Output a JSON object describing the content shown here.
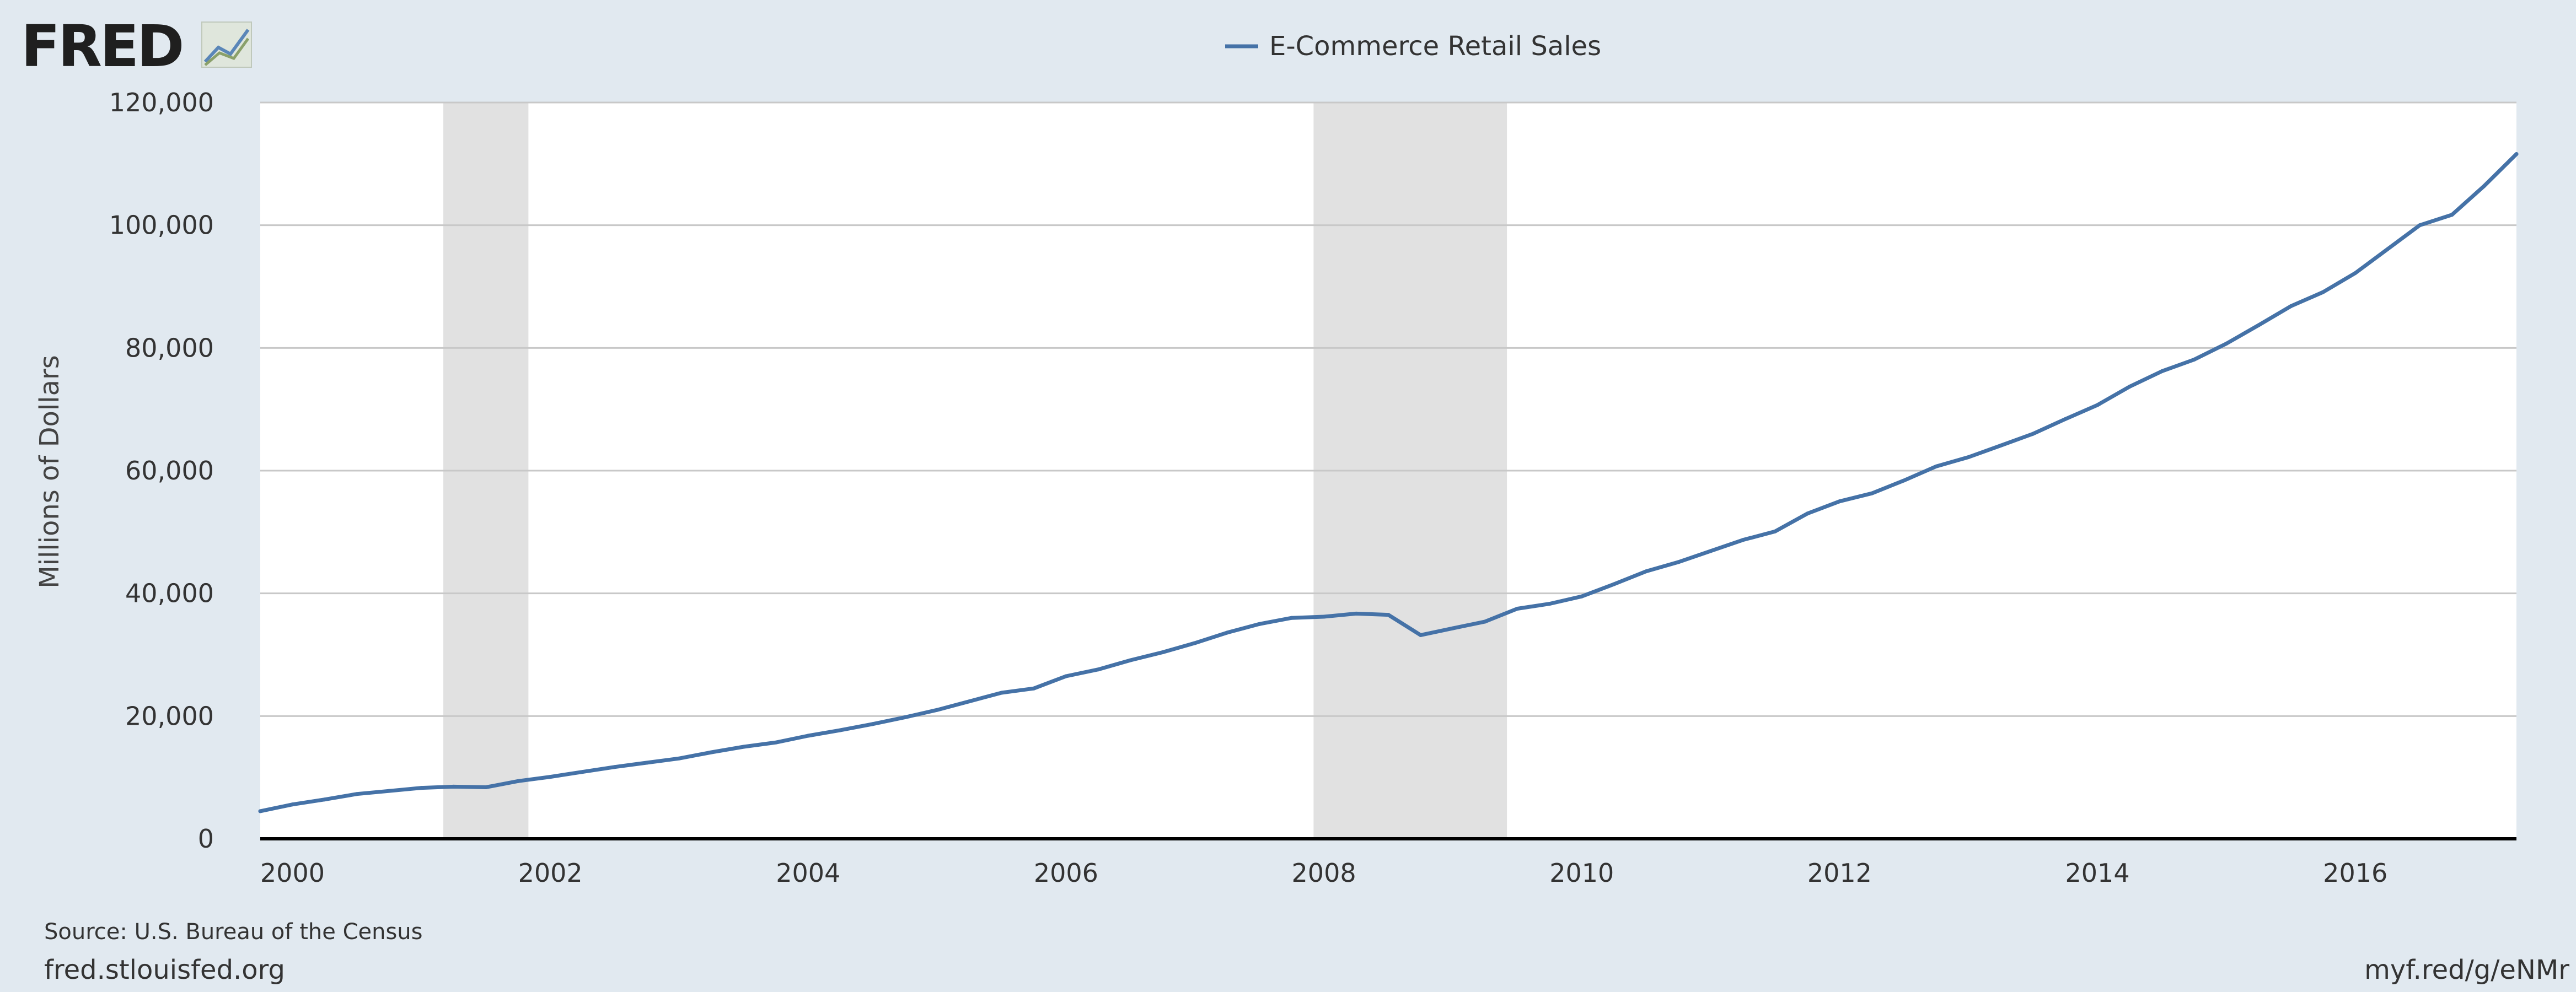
{
  "header": {
    "logo_text": "FRED",
    "logo_icon": "chart-line-icon"
  },
  "legend": {
    "label": "E-Commerce Retail Sales"
  },
  "footer": {
    "source": "Source: U.S. Bureau of the Census",
    "site": "fred.stlouisfed.org",
    "short_link": "myf.red/g/eNMr"
  },
  "colors": {
    "background": "#e1e9f0",
    "plot_background": "#ffffff",
    "line": "#4572a7",
    "recession": "#e1e1e1",
    "grid": "#c8c8c8",
    "axis": "#000000"
  },
  "chart_data": {
    "type": "line",
    "title": "",
    "xlabel": "",
    "ylabel": "Millions of Dollars",
    "ylim": [
      0,
      120000
    ],
    "xlim": [
      1999.75,
      2017.25
    ],
    "y_ticks": [
      {
        "value": 0,
        "label": "0"
      },
      {
        "value": 20000,
        "label": "20,000"
      },
      {
        "value": 40000,
        "label": "40,000"
      },
      {
        "value": 60000,
        "label": "60,000"
      },
      {
        "value": 80000,
        "label": "80,000"
      },
      {
        "value": 100000,
        "label": "100,000"
      },
      {
        "value": 120000,
        "label": "120,000"
      }
    ],
    "x_ticks": [
      {
        "value": 2000,
        "label": "2000"
      },
      {
        "value": 2002,
        "label": "2002"
      },
      {
        "value": 2004,
        "label": "2004"
      },
      {
        "value": 2006,
        "label": "2006"
      },
      {
        "value": 2008,
        "label": "2008"
      },
      {
        "value": 2010,
        "label": "2010"
      },
      {
        "value": 2012,
        "label": "2012"
      },
      {
        "value": 2014,
        "label": "2014"
      },
      {
        "value": 2016,
        "label": "2016"
      }
    ],
    "grid": true,
    "legend_position": "top-center",
    "recessions": [
      {
        "start": 2001.17,
        "end": 2001.83
      },
      {
        "start": 2007.92,
        "end": 2009.42
      }
    ],
    "series": [
      {
        "name": "E-Commerce Retail Sales",
        "x": [
          1999.75,
          2000.0,
          2000.25,
          2000.5,
          2000.75,
          2001.0,
          2001.25,
          2001.5,
          2001.75,
          2002.0,
          2002.25,
          2002.5,
          2002.75,
          2003.0,
          2003.25,
          2003.5,
          2003.75,
          2004.0,
          2004.25,
          2004.5,
          2004.75,
          2005.0,
          2005.25,
          2005.5,
          2005.75,
          2006.0,
          2006.25,
          2006.5,
          2006.75,
          2007.0,
          2007.25,
          2007.5,
          2007.75,
          2008.0,
          2008.25,
          2008.5,
          2008.75,
          2009.0,
          2009.25,
          2009.5,
          2009.75,
          2010.0,
          2010.25,
          2010.5,
          2010.75,
          2011.0,
          2011.25,
          2011.5,
          2011.75,
          2012.0,
          2012.25,
          2012.5,
          2012.75,
          2013.0,
          2013.25,
          2013.5,
          2013.75,
          2014.0,
          2014.25,
          2014.5,
          2014.75,
          2015.0,
          2015.25,
          2015.5,
          2015.75,
          2016.0,
          2016.25,
          2016.5,
          2016.75,
          2017.0,
          2017.25
        ],
        "values": [
          4500,
          5600,
          6400,
          7300,
          7800,
          8300,
          8500,
          8400,
          9400,
          10100,
          10900,
          11700,
          12400,
          13100,
          14100,
          15000,
          15700,
          16800,
          17700,
          18700,
          19800,
          21000,
          22400,
          23800,
          24500,
          26500,
          27600,
          29100,
          30400,
          31900,
          33600,
          35000,
          36000,
          36200,
          36700,
          36500,
          33200,
          34300,
          35400,
          37500,
          38300,
          39500,
          41500,
          43600,
          45100,
          46900,
          48700,
          50100,
          53000,
          55000,
          56300,
          58400,
          60700,
          62200,
          64100,
          66000,
          68400,
          70700,
          73700,
          76200,
          78100,
          80700,
          83700,
          86800,
          89100,
          92200,
          96100,
          100000,
          101700,
          106400,
          111600
        ]
      }
    ]
  }
}
